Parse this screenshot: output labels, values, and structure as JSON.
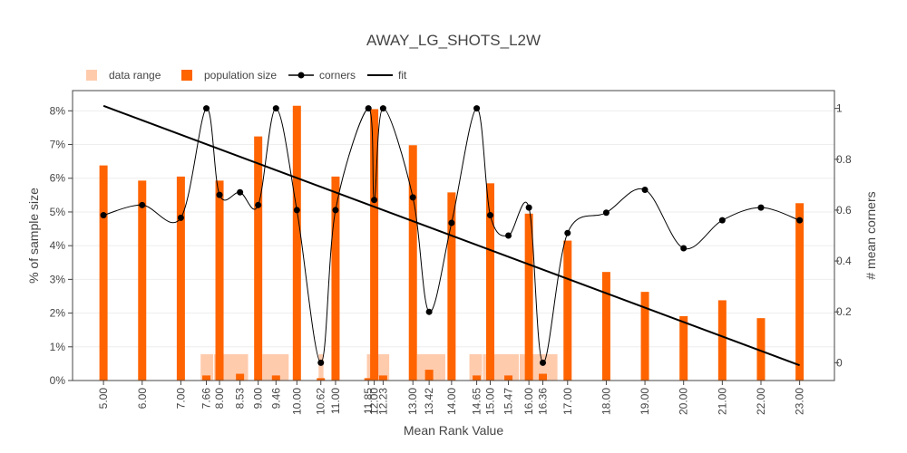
{
  "chart_data": {
    "type": "bar",
    "title": "AWAY_LG_SHOTS_L2W",
    "xlabel": "Mean Rank Value",
    "ylabel": "% of sample size",
    "y2label": "# mean corners",
    "ylim": [
      0,
      8.6
    ],
    "y2lim": [
      -0.07,
      1.07
    ],
    "xlim": [
      4.2,
      23.9
    ],
    "y_ticks": [
      {
        "v": 0,
        "label": "0%"
      },
      {
        "v": 1,
        "label": "1%"
      },
      {
        "v": 2,
        "label": "2%"
      },
      {
        "v": 3,
        "label": "3%"
      },
      {
        "v": 4,
        "label": "4%"
      },
      {
        "v": 5,
        "label": "5%"
      },
      {
        "v": 6,
        "label": "6%"
      },
      {
        "v": 7,
        "label": "7%"
      },
      {
        "v": 8,
        "label": "8%"
      }
    ],
    "y2_ticks": [
      {
        "v": 0,
        "label": "0"
      },
      {
        "v": 0.2,
        "label": "0.2"
      },
      {
        "v": 0.4,
        "label": "0.4"
      },
      {
        "v": 0.6,
        "label": "0.6"
      },
      {
        "v": 0.8,
        "label": "0.8"
      },
      {
        "v": 1,
        "label": "1"
      }
    ],
    "grid": true,
    "legend_position": "top-left",
    "legend": [
      {
        "name": "data range",
        "kind": "range",
        "color": "#ffcbad"
      },
      {
        "name": "population size",
        "kind": "bar",
        "color": "#ff6400"
      },
      {
        "name": "corners",
        "kind": "line-marker",
        "color": "#000000"
      },
      {
        "name": "fit",
        "kind": "line",
        "color": "#000000"
      }
    ],
    "colors": {
      "population": "#ff6400",
      "range": "#ffcbad",
      "line": "#000000",
      "fit": "#000000"
    },
    "categories": [
      "5.00",
      "6.00",
      "7.00",
      "7.66",
      "8.00",
      "8.53",
      "9.00",
      "9.46",
      "10.00",
      "10.62",
      "11.00",
      "11.85",
      "12.00",
      "12.23",
      "13.00",
      "13.42",
      "14.00",
      "14.65",
      "15.00",
      "15.47",
      "16.00",
      "16.36",
      "17.00",
      "18.00",
      "19.00",
      "20.00",
      "21.00",
      "22.00",
      "23.00"
    ],
    "x": [
      5.0,
      6.0,
      7.0,
      7.66,
      8.0,
      8.53,
      9.0,
      9.46,
      10.0,
      10.62,
      11.0,
      11.85,
      12.0,
      12.23,
      13.0,
      13.42,
      14.0,
      14.65,
      15.0,
      15.47,
      16.0,
      16.36,
      17.0,
      18.0,
      19.0,
      20.0,
      21.0,
      22.0,
      23.0
    ],
    "series": [
      {
        "name": "population size",
        "axis": "y",
        "type": "bar",
        "values": [
          6.38,
          5.93,
          6.05,
          0.15,
          5.93,
          0.2,
          7.24,
          0.15,
          8.15,
          0.07,
          6.05,
          0.07,
          8.05,
          0.15,
          6.98,
          0.32,
          5.58,
          0.15,
          5.85,
          0.15,
          4.95,
          0.2,
          4.15,
          3.22,
          2.63,
          1.91,
          2.38,
          1.85,
          5.26
        ]
      },
      {
        "name": "corners",
        "axis": "y2",
        "type": "line",
        "values": [
          0.58,
          0.62,
          0.57,
          1.0,
          0.66,
          0.67,
          0.62,
          1.0,
          0.6,
          0.0,
          0.6,
          1.0,
          0.64,
          1.0,
          0.65,
          0.2,
          0.55,
          1.0,
          0.58,
          0.5,
          0.61,
          0.0,
          0.51,
          0.59,
          0.68,
          0.45,
          0.56,
          0.61,
          0.56
        ]
      },
      {
        "name": "fit",
        "axis": "y2",
        "type": "line",
        "x": [
          5.0,
          23.0
        ],
        "values": [
          1.01,
          -0.01
        ]
      }
    ],
    "ranges": [
      {
        "from": 7.5,
        "to": 7.85,
        "height": 0.78
      },
      {
        "from": 7.85,
        "to": 8.75,
        "height": 0.78
      },
      {
        "from": 9.1,
        "to": 9.8,
        "height": 0.78
      },
      {
        "from": 10.55,
        "to": 10.7,
        "height": 0.78
      },
      {
        "from": 11.8,
        "to": 12.4,
        "height": 0.78
      },
      {
        "from": 13.1,
        "to": 13.85,
        "height": 0.78
      },
      {
        "from": 14.45,
        "to": 14.8,
        "height": 0.78
      },
      {
        "from": 14.8,
        "to": 15.75,
        "height": 0.78
      },
      {
        "from": 15.75,
        "to": 16.75,
        "height": 0.78
      }
    ]
  }
}
